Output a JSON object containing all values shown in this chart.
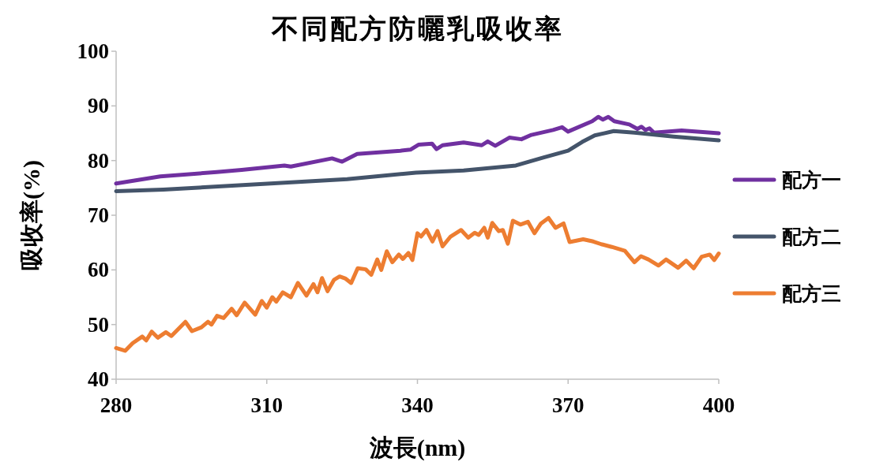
{
  "chart_data": {
    "type": "line",
    "title": "不同配方防曬乳吸收率",
    "xlabel": "波長(nm)",
    "ylabel": "吸收率(%)",
    "xlim": [
      280,
      400
    ],
    "xticks": [
      280,
      310,
      340,
      370,
      400
    ],
    "ylim": [
      40,
      100
    ],
    "yticks": [
      40,
      50,
      60,
      70,
      80,
      90,
      100
    ],
    "grid": false,
    "legend": "right",
    "marker": "none",
    "line_style": "solid",
    "series": [
      {
        "name": "配方一",
        "color": "#7030a0",
        "x": [
          280,
          288.8,
          300,
          305,
          313.5,
          314.8,
          323,
          325,
          328,
          336.6,
          338.6,
          340.2,
          342.9,
          343.8,
          345,
          349.2,
          352.8,
          354,
          355.5,
          358.3,
          360.7,
          362.7,
          367,
          368.8,
          370,
          374.8,
          376,
          376.9,
          378,
          379.2,
          382.2,
          383.8,
          384.6,
          385.4,
          386.2,
          387.1,
          392.6,
          400
        ],
        "values": [
          75.8,
          77.1,
          77.9,
          78.3,
          79.1,
          78.9,
          80.4,
          79.8,
          81.2,
          81.8,
          82.0,
          82.9,
          83.1,
          82.1,
          82.8,
          83.3,
          82.8,
          83.5,
          82.7,
          84.2,
          83.9,
          84.7,
          85.6,
          86.1,
          85.3,
          87.2,
          88.0,
          87.5,
          88.0,
          87.2,
          86.6,
          85.8,
          86.2,
          85.6,
          85.9,
          85.1,
          85.5,
          85.0
        ]
      },
      {
        "name": "配方二",
        "color": "#44546a",
        "x": [
          280,
          289.4,
          305.2,
          326,
          339.7,
          349.2,
          359.6,
          364.9,
          370,
          372.8,
          375.3,
          379.1,
          383.2,
          391,
          400
        ],
        "values": [
          74.4,
          74.7,
          75.5,
          76.6,
          77.8,
          78.2,
          79.1,
          80.5,
          81.8,
          83.4,
          84.6,
          85.4,
          85.1,
          84.4,
          83.7
        ]
      },
      {
        "name": "配方三",
        "color": "#ed7d31",
        "x": [
          280,
          281.8,
          283.3,
          285.2,
          286,
          287.1,
          288.3,
          289.9,
          291,
          293.8,
          295.1,
          297,
          298.3,
          299,
          300.1,
          301.4,
          303,
          304,
          305.6,
          307.7,
          309,
          310,
          311.1,
          311.9,
          313.2,
          314.8,
          316.2,
          317.9,
          319.3,
          320.1,
          321,
          322.1,
          323.4,
          324.5,
          325.7,
          326.8,
          328.1,
          329.7,
          330.8,
          332,
          332.8,
          333.9,
          335,
          336.3,
          337.1,
          338.2,
          339,
          340,
          340.7,
          341.8,
          343,
          344,
          345,
          346.6,
          348.7,
          350.1,
          351.4,
          352.2,
          353.3,
          354,
          354.9,
          356.2,
          357,
          358,
          359,
          360.5,
          362,
          363.3,
          364.6,
          366.1,
          367.5,
          369.1,
          370.3,
          373,
          375,
          376.6,
          378.7,
          381.3,
          383.2,
          384.5,
          386,
          388,
          389.5,
          391.9,
          393.5,
          395,
          396.6,
          398.2,
          399.1,
          400
        ],
        "values": [
          45.7,
          45.2,
          46.6,
          47.8,
          47.1,
          48.7,
          47.6,
          48.6,
          47.9,
          50.5,
          48.8,
          49.5,
          50.5,
          50.0,
          51.6,
          51.2,
          52.9,
          51.7,
          54.0,
          51.8,
          54.3,
          53.1,
          55.0,
          54.2,
          55.9,
          55.0,
          57.6,
          55.3,
          57.4,
          55.9,
          58.5,
          56.1,
          58.2,
          58.8,
          58.4,
          57.6,
          60.3,
          60.1,
          59.1,
          61.9,
          60.0,
          63.4,
          61.4,
          62.8,
          62.0,
          63.1,
          61.8,
          66.7,
          66.1,
          67.3,
          65.2,
          67.1,
          64.3,
          66.1,
          67.3,
          65.9,
          66.8,
          66.4,
          67.7,
          65.9,
          68.6,
          67.1,
          67.3,
          64.8,
          69.0,
          68.3,
          68.8,
          66.7,
          68.5,
          69.5,
          67.7,
          68.5,
          65.1,
          65.6,
          65.2,
          64.7,
          64.2,
          63.5,
          61.4,
          62.5,
          61.9,
          60.8,
          61.9,
          60.4,
          61.7,
          60.3,
          62.4,
          62.8,
          61.8,
          63.0
        ]
      }
    ]
  }
}
